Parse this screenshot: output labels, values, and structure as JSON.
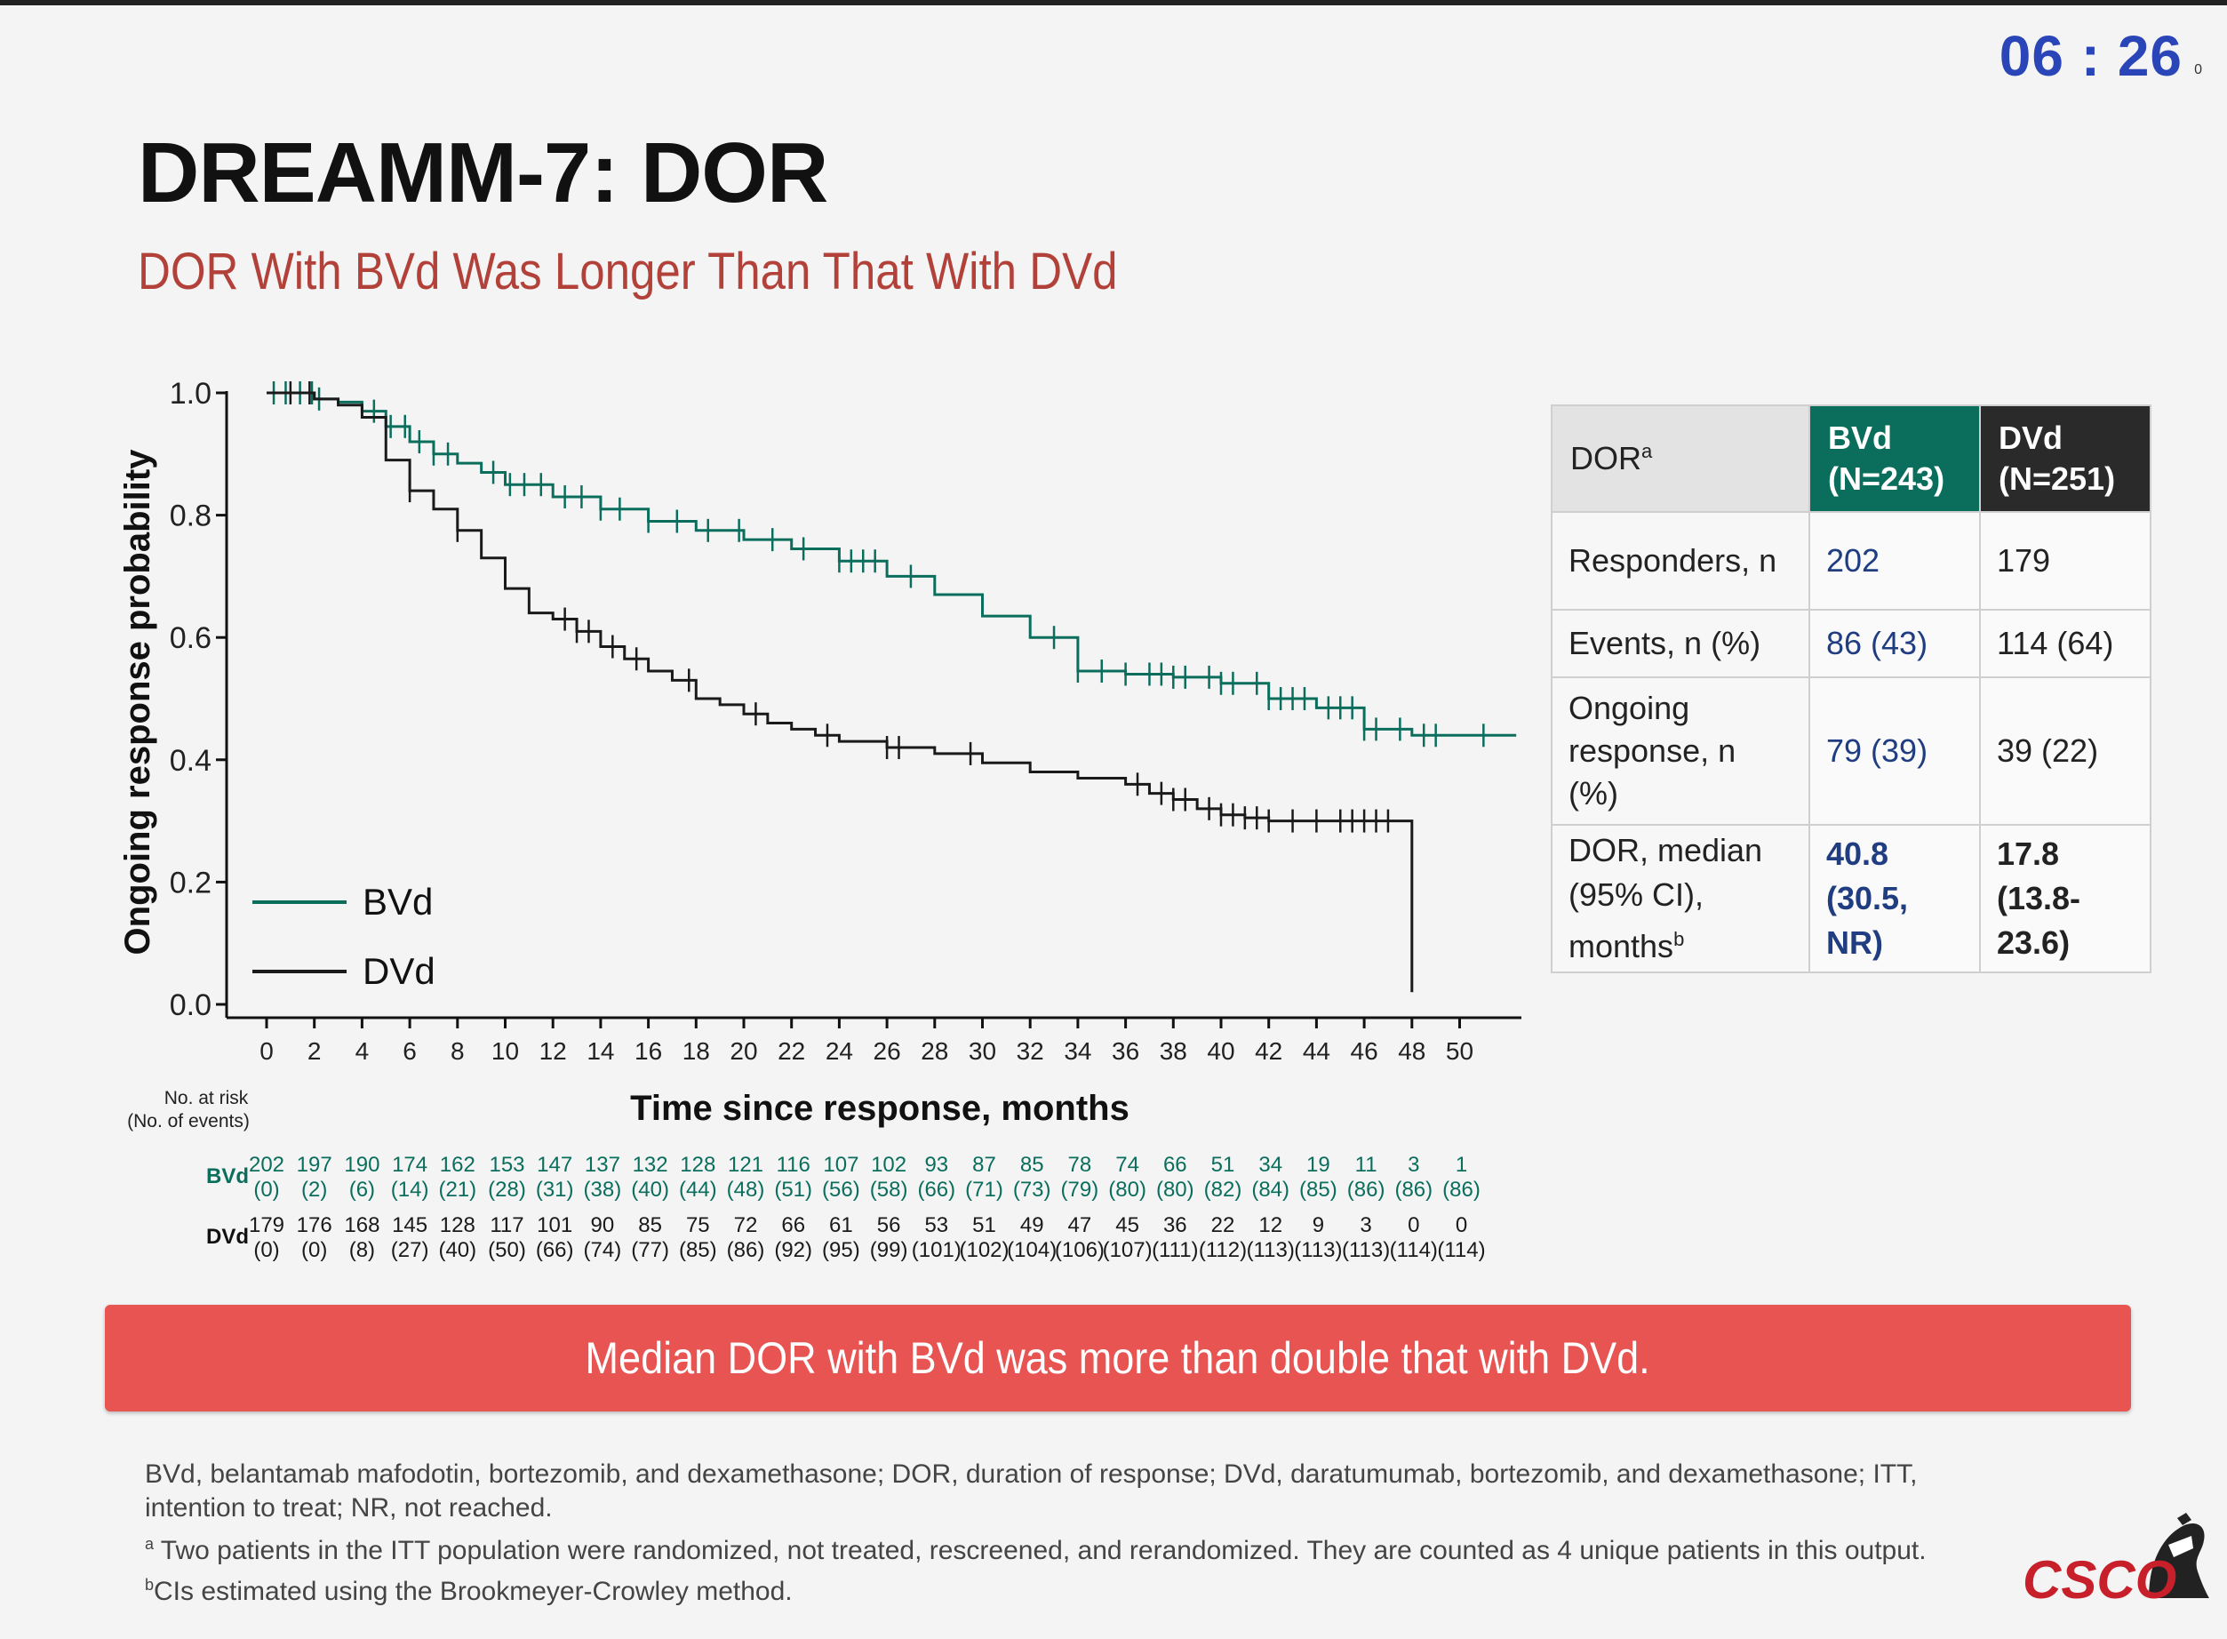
{
  "timer": "06 : 26",
  "timer_sub": "0",
  "title": "DREAMM-7: DOR",
  "subtitle": "DOR With BVd Was Longer Than That With DVd",
  "colors": {
    "bvd": "#0b6e5d",
    "dvd": "#1a1a1a",
    "banner": "#e85452",
    "accent_text": "#b2413a"
  },
  "chart_data": {
    "type": "line",
    "subtype": "kaplan-meier",
    "ylabel": "Ongoing response probability",
    "xlabel": "Time since response, months",
    "xlim": [
      0,
      52
    ],
    "ylim": [
      0,
      1.0
    ],
    "xticks": [
      "0",
      "2",
      "4",
      "6",
      "8",
      "10",
      "12",
      "14",
      "16",
      "18",
      "20",
      "22",
      "24",
      "26",
      "28",
      "30",
      "32",
      "34",
      "36",
      "38",
      "40",
      "42",
      "44",
      "46",
      "48",
      "50"
    ],
    "yticks": [
      "0.0",
      "0.2",
      "0.4",
      "0.6",
      "0.8",
      "1.0"
    ],
    "legend": [
      {
        "name": "BVd"
      },
      {
        "name": "DVd"
      }
    ],
    "series": [
      {
        "name": "BVd",
        "points": [
          [
            0,
            1.0
          ],
          [
            2,
            0.99
          ],
          [
            3,
            0.985
          ],
          [
            4,
            0.97
          ],
          [
            5,
            0.945
          ],
          [
            6,
            0.92
          ],
          [
            7,
            0.9
          ],
          [
            8,
            0.885
          ],
          [
            9,
            0.87
          ],
          [
            10,
            0.85
          ],
          [
            12,
            0.83
          ],
          [
            14,
            0.81
          ],
          [
            16,
            0.79
          ],
          [
            18,
            0.775
          ],
          [
            20,
            0.76
          ],
          [
            22,
            0.745
          ],
          [
            24,
            0.725
          ],
          [
            26,
            0.7
          ],
          [
            28,
            0.67
          ],
          [
            30,
            0.635
          ],
          [
            32,
            0.6
          ],
          [
            34,
            0.545
          ],
          [
            36,
            0.54
          ],
          [
            38,
            0.535
          ],
          [
            40,
            0.525
          ],
          [
            42,
            0.5
          ],
          [
            44,
            0.485
          ],
          [
            46,
            0.45
          ],
          [
            48,
            0.44
          ],
          [
            50,
            0.44
          ],
          [
            52,
            0.44
          ]
        ],
        "censor_x": [
          0.3,
          0.8,
          1.4,
          1.9,
          2.2,
          4.5,
          5.2,
          5.8,
          6.4,
          7.0,
          7.6,
          9.5,
          10.2,
          10.8,
          11.5,
          12.5,
          13.2,
          14.0,
          14.8,
          16.0,
          17.2,
          18.5,
          19.8,
          21.2,
          22.5,
          24.0,
          24.5,
          25.0,
          25.5,
          27.0,
          33.0,
          34.0,
          35.0,
          36.0,
          37.0,
          37.5,
          38.0,
          38.5,
          39.5,
          40.0,
          40.5,
          41.5,
          42.0,
          42.5,
          43.0,
          43.5,
          44.5,
          45.0,
          45.5,
          46.0,
          46.5,
          47.5,
          48.5,
          49.0,
          51.0
        ]
      },
      {
        "name": "DVd",
        "points": [
          [
            0,
            1.0
          ],
          [
            2,
            0.99
          ],
          [
            3,
            0.98
          ],
          [
            4,
            0.96
          ],
          [
            5,
            0.89
          ],
          [
            6,
            0.84
          ],
          [
            7,
            0.81
          ],
          [
            8,
            0.775
          ],
          [
            9,
            0.73
          ],
          [
            10,
            0.68
          ],
          [
            11,
            0.64
          ],
          [
            12,
            0.63
          ],
          [
            13,
            0.61
          ],
          [
            14,
            0.585
          ],
          [
            15,
            0.565
          ],
          [
            16,
            0.545
          ],
          [
            17,
            0.53
          ],
          [
            18,
            0.5
          ],
          [
            19,
            0.49
          ],
          [
            20,
            0.475
          ],
          [
            21,
            0.46
          ],
          [
            22,
            0.45
          ],
          [
            23,
            0.44
          ],
          [
            24,
            0.43
          ],
          [
            26,
            0.42
          ],
          [
            28,
            0.41
          ],
          [
            30,
            0.395
          ],
          [
            32,
            0.38
          ],
          [
            34,
            0.37
          ],
          [
            36,
            0.36
          ],
          [
            37,
            0.345
          ],
          [
            38,
            0.335
          ],
          [
            39,
            0.32
          ],
          [
            40,
            0.31
          ],
          [
            41,
            0.305
          ],
          [
            42,
            0.3
          ],
          [
            48,
            0.3
          ],
          [
            48,
            0.02
          ]
        ],
        "censor_x": [
          1.0,
          1.8,
          6.0,
          8.0,
          12.5,
          13.0,
          13.5,
          14.5,
          15.5,
          17.7,
          20.5,
          23.5,
          26.0,
          26.5,
          29.5,
          36.5,
          37.5,
          38.0,
          38.5,
          39.5,
          40.0,
          40.5,
          41.0,
          41.5,
          42.0,
          43.0,
          44.0,
          45.0,
          45.5,
          46.0,
          46.5,
          47.0
        ]
      }
    ]
  },
  "risk_table": {
    "header_line1": "No. at risk",
    "header_line2": "(No. of events)",
    "rows": [
      {
        "label": "BVd",
        "at_risk": [
          "202",
          "197",
          "190",
          "174",
          "162",
          "153",
          "147",
          "137",
          "132",
          "128",
          "121",
          "116",
          "107",
          "102",
          "93",
          "87",
          "85",
          "78",
          "74",
          "66",
          "51",
          "34",
          "19",
          "11",
          "3",
          "1"
        ],
        "events": [
          "(0)",
          "(2)",
          "(6)",
          "(14)",
          "(21)",
          "(28)",
          "(31)",
          "(38)",
          "(40)",
          "(44)",
          "(48)",
          "(51)",
          "(56)",
          "(58)",
          "(66)",
          "(71)",
          "(73)",
          "(79)",
          "(80)",
          "(80)",
          "(82)",
          "(84)",
          "(85)",
          "(86)",
          "(86)",
          "(86)"
        ]
      },
      {
        "label": "DVd",
        "at_risk": [
          "179",
          "176",
          "168",
          "145",
          "128",
          "117",
          "101",
          "90",
          "85",
          "75",
          "72",
          "66",
          "61",
          "56",
          "53",
          "51",
          "49",
          "47",
          "45",
          "36",
          "22",
          "12",
          "9",
          "3",
          "0",
          "0"
        ],
        "events": [
          "(0)",
          "(0)",
          "(8)",
          "(27)",
          "(40)",
          "(50)",
          "(66)",
          "(74)",
          "(77)",
          "(85)",
          "(86)",
          "(92)",
          "(95)",
          "(99)",
          "(101)",
          "(102)",
          "(104)",
          "(106)",
          "(107)",
          "(111)",
          "(112)",
          "(113)",
          "(113)",
          "(113)",
          "(114)",
          "(114)"
        ]
      }
    ]
  },
  "table": {
    "header": {
      "dor": "DOR",
      "dor_sup": "a",
      "bvd_line1": "BVd",
      "bvd_line2": "(N=243)",
      "dvd_line1": "DVd",
      "dvd_line2": "(N=251)"
    },
    "rows": [
      {
        "label_line1": "Responders, n",
        "label_line2": "",
        "bvd_line1": "202",
        "bvd_line2": "",
        "dvd_line1": "179",
        "dvd_line2": ""
      },
      {
        "label_line1": "Events, n (%)",
        "label_line2": "",
        "bvd_line1": "86 (43)",
        "bvd_line2": "",
        "dvd_line1": "114 (64)",
        "dvd_line2": ""
      },
      {
        "label_line1": "Ongoing",
        "label_line2": "response, n (%)",
        "bvd_line1": "79 (39)",
        "bvd_line2": "",
        "dvd_line1": "39 (22)",
        "dvd_line2": ""
      },
      {
        "label_line1": "DOR, median",
        "label_line2": "(95% CI), months",
        "label_sup": "b",
        "bvd_line1": "40.8",
        "bvd_line2": "(30.5, NR)",
        "dvd_line1": "17.8",
        "dvd_line2": "(13.8-23.6)"
      }
    ]
  },
  "banner": "Median DOR with BVd was more than double that with DVd.",
  "footnotes": {
    "line1": "BVd, belantamab mafodotin, bortezomib, and dexamethasone; DOR, duration of response; DVd, daratumumab, bortezomib, and dexamethasone; ITT, intention to treat; NR, not reached.",
    "note_a_mark": "a",
    "note_a": " Two patients in the ITT population were randomized, not treated, rescreened, and rerandomized. They are counted as 4 unique patients in this output. ",
    "note_b_mark": "b",
    "note_b": "CIs estimated using the Brookmeyer-Crowley method."
  },
  "logo_text": "CSCO"
}
